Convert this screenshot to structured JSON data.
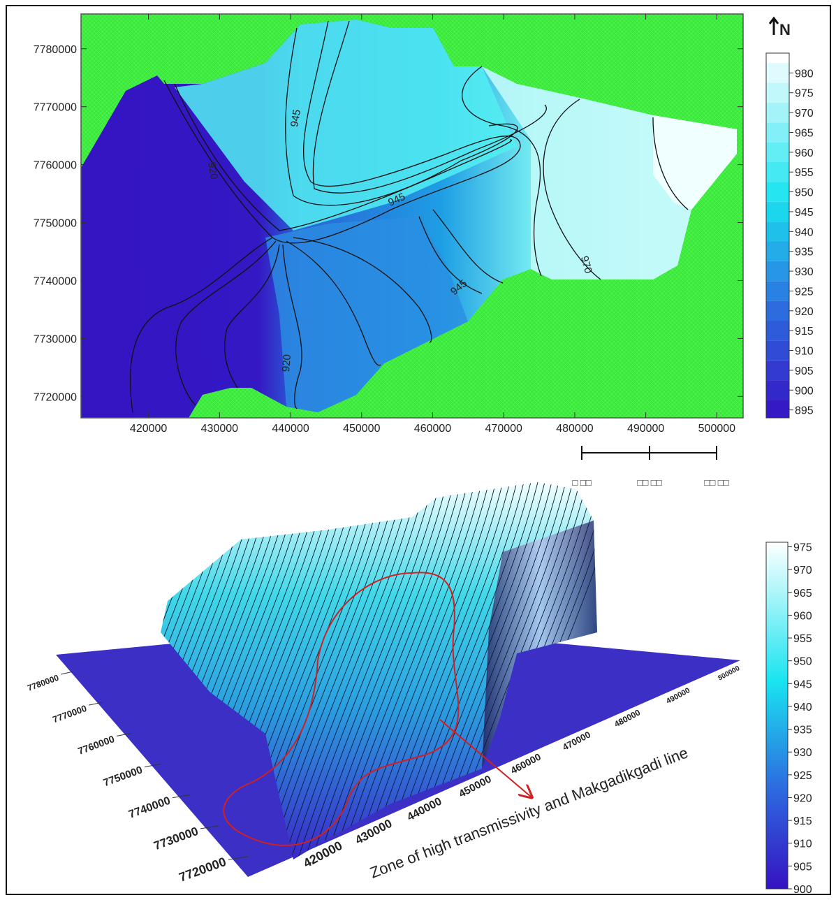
{
  "map": {
    "type": "contour",
    "north_label": "N",
    "xlim": [
      410500,
      503700
    ],
    "xticks": [
      420000,
      430000,
      440000,
      450000,
      460000,
      470000,
      480000,
      490000,
      500000
    ],
    "ylim": [
      7716300,
      7786000
    ],
    "yticks": [
      7720000,
      7730000,
      7740000,
      7750000,
      7760000,
      7770000,
      7780000
    ],
    "colorbar": {
      "lim": [
        893,
        985
      ],
      "ticks": [
        895,
        900,
        905,
        910,
        915,
        920,
        925,
        930,
        935,
        940,
        945,
        950,
        955,
        960,
        965,
        970,
        975,
        980
      ]
    },
    "contour_labels": [
      945,
      920,
      945,
      945,
      970,
      920
    ],
    "scale_bar": [
      "□ □□",
      "□□ □□",
      "□□ □□"
    ]
  },
  "surface": {
    "type": "surface3d",
    "xticks": [
      420000,
      430000,
      440000,
      450000,
      460000,
      470000,
      480000,
      490000,
      500000
    ],
    "yticks": [
      7720000,
      7730000,
      7740000,
      7750000,
      7760000,
      7770000,
      7780000
    ],
    "colorbar": {
      "lim": [
        900,
        976
      ],
      "ticks": [
        900,
        905,
        910,
        915,
        920,
        925,
        930,
        935,
        940,
        945,
        950,
        955,
        960,
        965,
        970,
        975
      ]
    },
    "annotation": "Zone of high transmissivity and Makgadikgadi line"
  }
}
